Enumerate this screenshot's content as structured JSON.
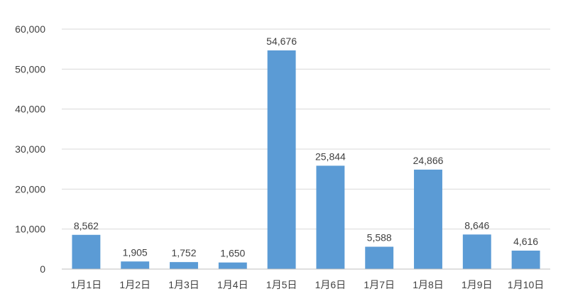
{
  "chart_data": {
    "type": "bar",
    "title": "",
    "xlabel": "",
    "ylabel": "",
    "categories": [
      "1月1日",
      "1月2日",
      "1月3日",
      "1月4日",
      "1月5日",
      "1月6日",
      "1月7日",
      "1月8日",
      "1月9日",
      "1月10日"
    ],
    "values": [
      8562,
      1905,
      1752,
      1650,
      54676,
      25844,
      5588,
      24866,
      8646,
      4616
    ],
    "value_labels": [
      "8,562",
      "1,905",
      "1,752",
      "1,650",
      "54,676",
      "25,844",
      "5,588",
      "24,866",
      "8,646",
      "4,616"
    ],
    "ylim": [
      0,
      60000
    ],
    "yticks": [
      0,
      10000,
      20000,
      30000,
      40000,
      50000,
      60000
    ],
    "ytick_labels": [
      "0",
      "10,000",
      "20,000",
      "30,000",
      "40,000",
      "50,000",
      "60,000"
    ],
    "grid": true,
    "legend": "none",
    "bar_color": "#5b9bd5"
  }
}
